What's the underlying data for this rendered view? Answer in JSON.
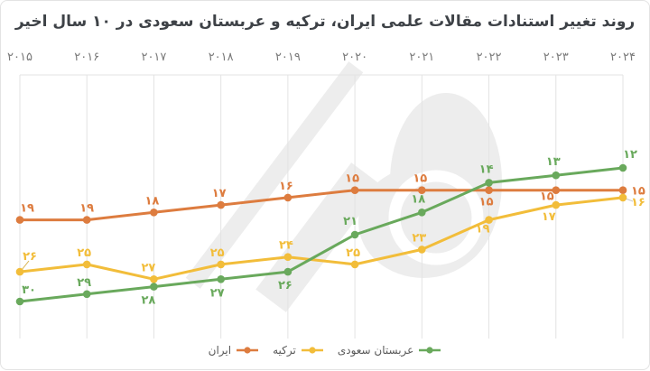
{
  "title": "روند تغییر استنادات مقالات علمی ایران، ترکیه و عربستان سعودی در ۱۰ سال اخیر",
  "colors": {
    "iran": "#dd7c3f",
    "turkey": "#f2bd3a",
    "saudi": "#69a95c",
    "title_text": "#3e4247",
    "axis_label": "#7a7a7a",
    "grid": "#e3e3e3",
    "watermark": "#ededed",
    "legend_text": "#595959",
    "card_border": "#e3e3e3"
  },
  "chart_data": {
    "type": "line",
    "title": "روند تغییر استنادات مقالات علمی ایران، ترکیه و عربستان سعودی در ۱۰ سال اخیر",
    "x_categories": [
      "۲۰۱۵",
      "۲۰۱۶",
      "۲۰۱۷",
      "۲۰۱۸",
      "۲۰۱۹",
      "۲۰۲۰",
      "۲۰۲۱",
      "۲۰۲۲",
      "۲۰۲۳",
      "۲۰۲۴"
    ],
    "x_values": [
      2015,
      2016,
      2017,
      2018,
      2019,
      2020,
      2021,
      2022,
      2023,
      2024
    ],
    "ylim": [
      12,
      30
    ],
    "y_axis_inverted": true,
    "y_axis_visible": false,
    "grid": "vertical-only",
    "legend_position": "bottom-center",
    "x_axis_position": "top",
    "series": [
      {
        "key": "iran",
        "name": "ایران",
        "color": "#dd7c3f",
        "values": [
          19,
          19,
          18,
          17,
          16,
          15,
          15,
          15,
          15,
          15
        ],
        "labels": [
          "۱۹",
          "۱۹",
          "۱۸",
          "۱۷",
          "۱۶",
          "۱۵",
          "۱۵",
          "۱۵",
          "۱۵",
          "۱۵"
        ],
        "label_pos": [
          "a",
          "a",
          "a",
          "a",
          "a",
          "a",
          "a",
          "b",
          "b",
          "r"
        ],
        "label_dx": [
          8,
          0,
          -2,
          -2,
          -2,
          -3,
          -2,
          -3,
          -10,
          0
        ],
        "label_dy": [
          0,
          0,
          0,
          0,
          0,
          0,
          0,
          0,
          -6,
          0
        ]
      },
      {
        "key": "turkey",
        "name": "ترکیه",
        "color": "#f2bd3a",
        "values": [
          26,
          25,
          27,
          25,
          24,
          25,
          23,
          19,
          17,
          16
        ],
        "labels": [
          "۲۶",
          "۲۵",
          "۲۷",
          "۲۵",
          "۲۴",
          "۲۵",
          "۲۳",
          "۱۹",
          "۱۷",
          "۱۶"
        ],
        "label_pos": [
          "a",
          "a",
          "a",
          "a",
          "a",
          "a",
          "a",
          "b",
          "b",
          "r"
        ],
        "label_dx": [
          11,
          -3,
          -6,
          -4,
          -2,
          -2,
          -3,
          -7,
          -8,
          0
        ],
        "label_dy": [
          -4,
          0,
          0,
          0,
          0,
          0,
          0,
          -3,
          0,
          4
        ]
      },
      {
        "key": "saudi",
        "name": "عربستان سعودی",
        "color": "#69a95c",
        "values": [
          30,
          29,
          28,
          27,
          26,
          21,
          18,
          14,
          13,
          12
        ],
        "labels": [
          "۳۰",
          "۲۹",
          "۲۸",
          "۲۷",
          "۲۶",
          "۲۱",
          "۱۸",
          "۱۴",
          "۱۳",
          "۱۲"
        ],
        "label_pos": [
          "a",
          "a",
          "b",
          "b",
          "b",
          "a",
          "a",
          "a",
          "a",
          "a"
        ],
        "label_dx": [
          10,
          -3,
          -6,
          -4,
          -3,
          -5,
          -4,
          -3,
          -3,
          8
        ],
        "label_dy": [
          0,
          0,
          2,
          2,
          2,
          -2,
          -2,
          -2,
          -2,
          -2
        ]
      }
    ]
  },
  "legend": {
    "items": [
      {
        "key": "iran",
        "label": "ایران",
        "color": "#dd7c3f"
      },
      {
        "key": "turkey",
        "label": "ترکیه",
        "color": "#f2bd3a"
      },
      {
        "key": "saudi",
        "label": "عربستان سعودی",
        "color": "#69a95c"
      }
    ]
  }
}
